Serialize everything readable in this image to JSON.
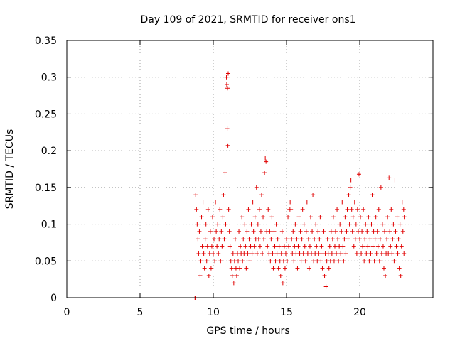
{
  "chart_data": {
    "type": "scatter",
    "title": "Day 109 of 2021, SRMTID for receiver ons1",
    "xlabel": "GPS time / hours",
    "ylabel": "SRMTID / TECUs",
    "xlim": [
      0,
      25
    ],
    "ylim": [
      0,
      0.35
    ],
    "grid": true,
    "xticks": [
      0,
      5,
      10,
      15,
      20
    ],
    "xtick_labels": [
      "0",
      "5",
      "10",
      "15",
      "20"
    ],
    "yticks": [
      0,
      0.05,
      0.1,
      0.15,
      0.2,
      0.25,
      0.3,
      0.35
    ],
    "ytick_labels": [
      "0",
      "0.05",
      "0.1",
      "0.15",
      "0.2",
      "0.25",
      "0.3",
      "0.35"
    ],
    "marker": "+",
    "color": "#e00000",
    "series": [
      {
        "name": "SRMTID",
        "points": [
          [
            8.75,
            0.0
          ],
          [
            8.76,
            0.0
          ],
          [
            8.8,
            0.14
          ],
          [
            8.85,
            0.12
          ],
          [
            8.9,
            0.1
          ],
          [
            8.95,
            0.08
          ],
          [
            9.0,
            0.06
          ],
          [
            9.05,
            0.09
          ],
          [
            9.1,
            0.03
          ],
          [
            9.15,
            0.05
          ],
          [
            9.2,
            0.11
          ],
          [
            9.25,
            0.07
          ],
          [
            9.3,
            0.13
          ],
          [
            9.35,
            0.06
          ],
          [
            9.4,
            0.04
          ],
          [
            9.45,
            0.08
          ],
          [
            9.5,
            0.1
          ],
          [
            9.55,
            0.05
          ],
          [
            9.6,
            0.07
          ],
          [
            9.65,
            0.12
          ],
          [
            9.7,
            0.03
          ],
          [
            9.75,
            0.06
          ],
          [
            9.8,
            0.09
          ],
          [
            9.85,
            0.04
          ],
          [
            9.9,
            0.07
          ],
          [
            9.95,
            0.11
          ],
          [
            10.0,
            0.06
          ],
          [
            10.05,
            0.08
          ],
          [
            10.1,
            0.05
          ],
          [
            10.15,
            0.13
          ],
          [
            10.2,
            0.09
          ],
          [
            10.25,
            0.07
          ],
          [
            10.3,
            0.1
          ],
          [
            10.35,
            0.06
          ],
          [
            10.4,
            0.08
          ],
          [
            10.45,
            0.12
          ],
          [
            10.5,
            0.05
          ],
          [
            10.55,
            0.09
          ],
          [
            10.6,
            0.07
          ],
          [
            10.65,
            0.11
          ],
          [
            10.7,
            0.14
          ],
          [
            10.75,
            0.08
          ],
          [
            10.8,
            0.17
          ],
          [
            10.85,
            0.1
          ],
          [
            10.9,
            0.3
          ],
          [
            10.92,
            0.29
          ],
          [
            10.95,
            0.23
          ],
          [
            10.97,
            0.285
          ],
          [
            11.0,
            0.207
          ],
          [
            11.02,
            0.305
          ],
          [
            11.05,
            0.12
          ],
          [
            11.1,
            0.09
          ],
          [
            11.15,
            0.07
          ],
          [
            11.2,
            0.05
          ],
          [
            11.25,
            0.04
          ],
          [
            11.3,
            0.03
          ],
          [
            11.35,
            0.06
          ],
          [
            11.4,
            0.02
          ],
          [
            11.45,
            0.05
          ],
          [
            11.5,
            0.08
          ],
          [
            11.55,
            0.04
          ],
          [
            11.6,
            0.03
          ],
          [
            11.65,
            0.06
          ],
          [
            11.7,
            0.05
          ],
          [
            11.75,
            0.09
          ],
          [
            11.8,
            0.04
          ],
          [
            11.85,
            0.07
          ],
          [
            11.9,
            0.06
          ],
          [
            11.95,
            0.11
          ],
          [
            12.0,
            0.05
          ],
          [
            12.05,
            0.08
          ],
          [
            12.1,
            0.06
          ],
          [
            12.15,
            0.1
          ],
          [
            12.2,
            0.07
          ],
          [
            12.25,
            0.04
          ],
          [
            12.3,
            0.09
          ],
          [
            12.35,
            0.06
          ],
          [
            12.4,
            0.12
          ],
          [
            12.45,
            0.08
          ],
          [
            12.5,
            0.05
          ],
          [
            12.55,
            0.07
          ],
          [
            12.6,
            0.1
          ],
          [
            12.65,
            0.06
          ],
          [
            12.7,
            0.13
          ],
          [
            12.75,
            0.09
          ],
          [
            12.8,
            0.07
          ],
          [
            12.85,
            0.11
          ],
          [
            12.9,
            0.08
          ],
          [
            12.95,
            0.15
          ],
          [
            13.0,
            0.06
          ],
          [
            13.05,
            0.1
          ],
          [
            13.1,
            0.08
          ],
          [
            13.15,
            0.12
          ],
          [
            13.2,
            0.07
          ],
          [
            13.25,
            0.09
          ],
          [
            13.3,
            0.14
          ],
          [
            13.35,
            0.06
          ],
          [
            13.4,
            0.11
          ],
          [
            13.45,
            0.08
          ],
          [
            13.5,
            0.17
          ],
          [
            13.55,
            0.19
          ],
          [
            13.6,
            0.185
          ],
          [
            13.65,
            0.09
          ],
          [
            13.7,
            0.07
          ],
          [
            13.75,
            0.12
          ],
          [
            13.8,
            0.06
          ],
          [
            13.85,
            0.09
          ],
          [
            13.9,
            0.05
          ],
          [
            13.95,
            0.08
          ],
          [
            14.0,
            0.11
          ],
          [
            14.05,
            0.06
          ],
          [
            14.1,
            0.04
          ],
          [
            14.15,
            0.09
          ],
          [
            14.2,
            0.07
          ],
          [
            14.25,
            0.05
          ],
          [
            14.3,
            0.1
          ],
          [
            14.35,
            0.06
          ],
          [
            14.4,
            0.08
          ],
          [
            14.45,
            0.04
          ],
          [
            14.5,
            0.07
          ],
          [
            14.55,
            0.05
          ],
          [
            14.6,
            0.03
          ],
          [
            14.65,
            0.06
          ],
          [
            14.7,
            0.09
          ],
          [
            14.75,
            0.02
          ],
          [
            14.8,
            0.05
          ],
          [
            14.85,
            0.07
          ],
          [
            14.9,
            0.04
          ],
          [
            14.95,
            0.06
          ],
          [
            15.0,
            0.08
          ],
          [
            15.05,
            0.05
          ],
          [
            15.1,
            0.11
          ],
          [
            15.15,
            0.07
          ],
          [
            15.2,
            0.12
          ],
          [
            15.25,
            0.13
          ],
          [
            15.3,
            0.12
          ],
          [
            15.35,
            0.08
          ],
          [
            15.4,
            0.06
          ],
          [
            15.45,
            0.09
          ],
          [
            15.5,
            0.05
          ],
          [
            15.55,
            0.07
          ],
          [
            15.6,
            0.1
          ],
          [
            15.65,
            0.06
          ],
          [
            15.7,
            0.08
          ],
          [
            15.75,
            0.04
          ],
          [
            15.8,
            0.07
          ],
          [
            15.85,
            0.11
          ],
          [
            15.9,
            0.06
          ],
          [
            15.95,
            0.09
          ],
          [
            16.0,
            0.05
          ],
          [
            16.05,
            0.08
          ],
          [
            16.1,
            0.12
          ],
          [
            16.15,
            0.06
          ],
          [
            16.2,
            0.1
          ],
          [
            16.25,
            0.07
          ],
          [
            16.3,
            0.05
          ],
          [
            16.35,
            0.09
          ],
          [
            16.4,
            0.13
          ],
          [
            16.45,
            0.06
          ],
          [
            16.5,
            0.08
          ],
          [
            16.55,
            0.04
          ],
          [
            16.6,
            0.07
          ],
          [
            16.65,
            0.11
          ],
          [
            16.7,
            0.06
          ],
          [
            16.75,
            0.09
          ],
          [
            16.8,
            0.14
          ],
          [
            16.85,
            0.05
          ],
          [
            16.9,
            0.08
          ],
          [
            16.95,
            0.06
          ],
          [
            17.0,
            0.1
          ],
          [
            17.05,
            0.07
          ],
          [
            17.1,
            0.05
          ],
          [
            17.15,
            0.09
          ],
          [
            17.2,
            0.06
          ],
          [
            17.25,
            0.08
          ],
          [
            17.3,
            0.11
          ],
          [
            17.35,
            0.05
          ],
          [
            17.4,
            0.07
          ],
          [
            17.45,
            0.04
          ],
          [
            17.5,
            0.06
          ],
          [
            17.55,
            0.09
          ],
          [
            17.6,
            0.03
          ],
          [
            17.65,
            0.06
          ],
          [
            17.7,
            0.015
          ],
          [
            17.75,
            0.05
          ],
          [
            17.8,
            0.08
          ],
          [
            17.85,
            0.06
          ],
          [
            17.9,
            0.04
          ],
          [
            17.95,
            0.07
          ],
          [
            18.0,
            0.05
          ],
          [
            18.05,
            0.09
          ],
          [
            18.1,
            0.06
          ],
          [
            18.15,
            0.08
          ],
          [
            18.2,
            0.11
          ],
          [
            18.25,
            0.05
          ],
          [
            18.3,
            0.07
          ],
          [
            18.35,
            0.09
          ],
          [
            18.4,
            0.06
          ],
          [
            18.45,
            0.12
          ],
          [
            18.5,
            0.08
          ],
          [
            18.55,
            0.05
          ],
          [
            18.6,
            0.07
          ],
          [
            18.65,
            0.1
          ],
          [
            18.7,
            0.06
          ],
          [
            18.75,
            0.09
          ],
          [
            18.8,
            0.13
          ],
          [
            18.85,
            0.07
          ],
          [
            18.9,
            0.05
          ],
          [
            18.95,
            0.08
          ],
          [
            19.0,
            0.11
          ],
          [
            19.05,
            0.06
          ],
          [
            19.1,
            0.09
          ],
          [
            19.15,
            0.12
          ],
          [
            19.2,
            0.08
          ],
          [
            19.25,
            0.14
          ],
          [
            19.3,
            0.1
          ],
          [
            19.35,
            0.15
          ],
          [
            19.4,
            0.16
          ],
          [
            19.45,
            0.12
          ],
          [
            19.5,
            0.09
          ],
          [
            19.55,
            0.11
          ],
          [
            19.6,
            0.07
          ],
          [
            19.65,
            0.13
          ],
          [
            19.7,
            0.08
          ],
          [
            19.75,
            0.1
          ],
          [
            19.8,
            0.06
          ],
          [
            19.85,
            0.12
          ],
          [
            19.9,
            0.09
          ],
          [
            19.95,
            0.168
          ],
          [
            20.0,
            0.08
          ],
          [
            20.05,
            0.11
          ],
          [
            20.1,
            0.06
          ],
          [
            20.15,
            0.09
          ],
          [
            20.2,
            0.07
          ],
          [
            20.25,
            0.12
          ],
          [
            20.3,
            0.05
          ],
          [
            20.35,
            0.08
          ],
          [
            20.4,
            0.1
          ],
          [
            20.45,
            0.06
          ],
          [
            20.5,
            0.09
          ],
          [
            20.55,
            0.07
          ],
          [
            20.6,
            0.11
          ],
          [
            20.65,
            0.05
          ],
          [
            20.7,
            0.08
          ],
          [
            20.75,
            0.06
          ],
          [
            20.8,
            0.1
          ],
          [
            20.85,
            0.14
          ],
          [
            20.9,
            0.07
          ],
          [
            20.95,
            0.09
          ],
          [
            21.0,
            0.05
          ],
          [
            21.05,
            0.08
          ],
          [
            21.1,
            0.11
          ],
          [
            21.15,
            0.06
          ],
          [
            21.2,
            0.09
          ],
          [
            21.25,
            0.07
          ],
          [
            21.3,
            0.12
          ],
          [
            21.35,
            0.05
          ],
          [
            21.4,
            0.08
          ],
          [
            21.45,
            0.15
          ],
          [
            21.5,
            0.06
          ],
          [
            21.55,
            0.1
          ],
          [
            21.6,
            0.07
          ],
          [
            21.65,
            0.04
          ],
          [
            21.7,
            0.09
          ],
          [
            21.75,
            0.03
          ],
          [
            21.8,
            0.06
          ],
          [
            21.85,
            0.08
          ],
          [
            21.9,
            0.11
          ],
          [
            21.95,
            0.06
          ],
          [
            22.0,
            0.163
          ],
          [
            22.05,
            0.09
          ],
          [
            22.1,
            0.07
          ],
          [
            22.15,
            0.12
          ],
          [
            22.2,
            0.06
          ],
          [
            22.25,
            0.08
          ],
          [
            22.3,
            0.1
          ],
          [
            22.35,
            0.05
          ],
          [
            22.4,
            0.16
          ],
          [
            22.45,
            0.09
          ],
          [
            22.5,
            0.07
          ],
          [
            22.55,
            0.11
          ],
          [
            22.6,
            0.06
          ],
          [
            22.65,
            0.08
          ],
          [
            22.7,
            0.04
          ],
          [
            22.75,
            0.1
          ],
          [
            22.8,
            0.03
          ],
          [
            22.85,
            0.07
          ],
          [
            22.9,
            0.13
          ],
          [
            22.95,
            0.09
          ],
          [
            23.0,
            0.12
          ],
          [
            23.02,
            0.06
          ],
          [
            23.04,
            0.11
          ]
        ]
      }
    ]
  }
}
